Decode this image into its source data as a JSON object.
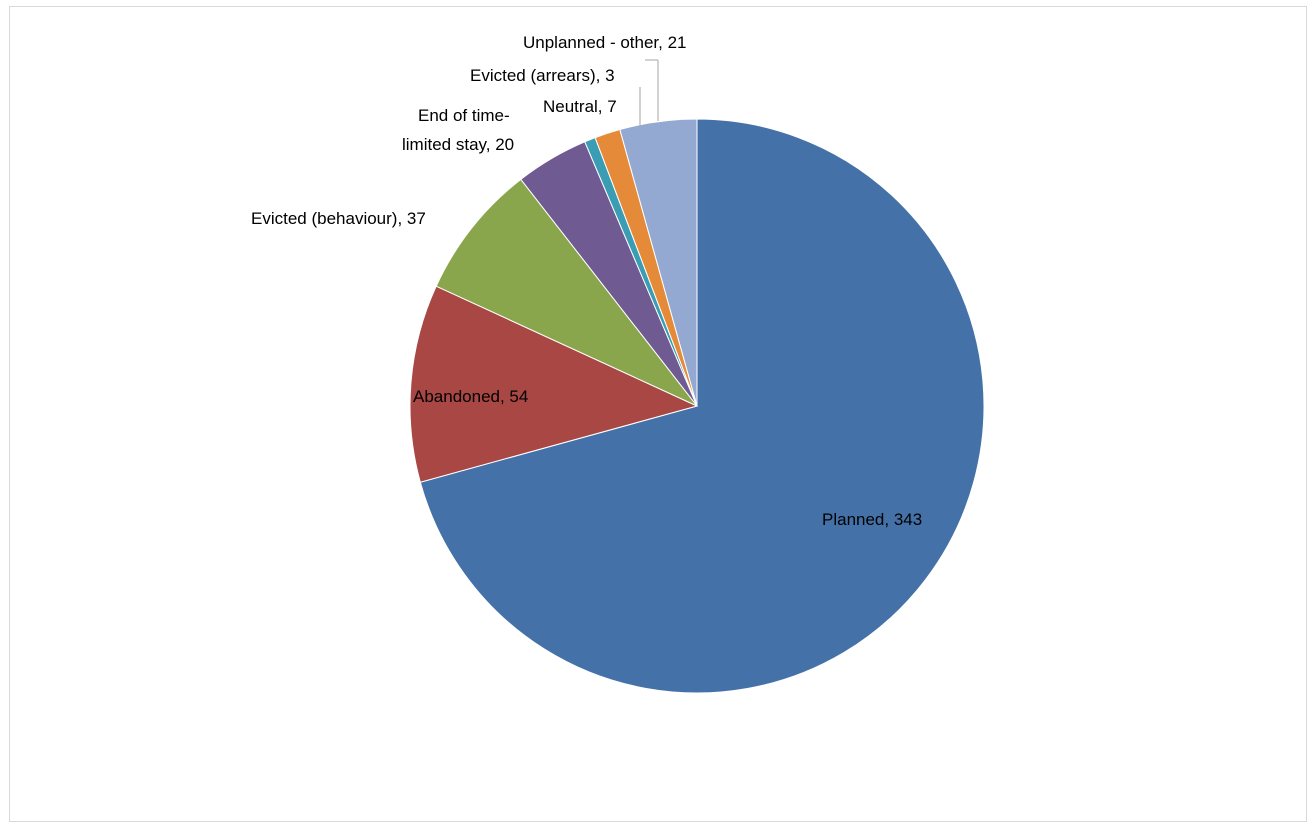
{
  "chart_data": {
    "type": "pie",
    "title": "",
    "start_angle_deg": 0,
    "direction": "clockwise",
    "legend": "none",
    "slices": [
      {
        "label": "Planned, 343",
        "name": "Planned",
        "value": 343,
        "color": "#4472A8"
      },
      {
        "label": "Abandoned, 54",
        "name": "Abandoned",
        "value": 54,
        "color": "#A84744"
      },
      {
        "label": "Evicted (behaviour), 37",
        "name": "Evicted (behaviour)",
        "value": 37,
        "color": "#8AA64D"
      },
      {
        "label_lines": [
          "End of time-",
          "limited stay, 20"
        ],
        "name": "End of time-limited stay",
        "value": 20,
        "color": "#6F5A91"
      },
      {
        "label": "Evicted (arrears), 3",
        "name": "Evicted (arrears)",
        "value": 3,
        "color": "#3A9DB4"
      },
      {
        "label": "Neutral, 7",
        "name": "Neutral",
        "value": 7,
        "color": "#E58A38"
      },
      {
        "label": "Unplanned - other, 21",
        "name": "Unplanned - other",
        "value": 21,
        "color": "#94A9D2"
      }
    ]
  }
}
